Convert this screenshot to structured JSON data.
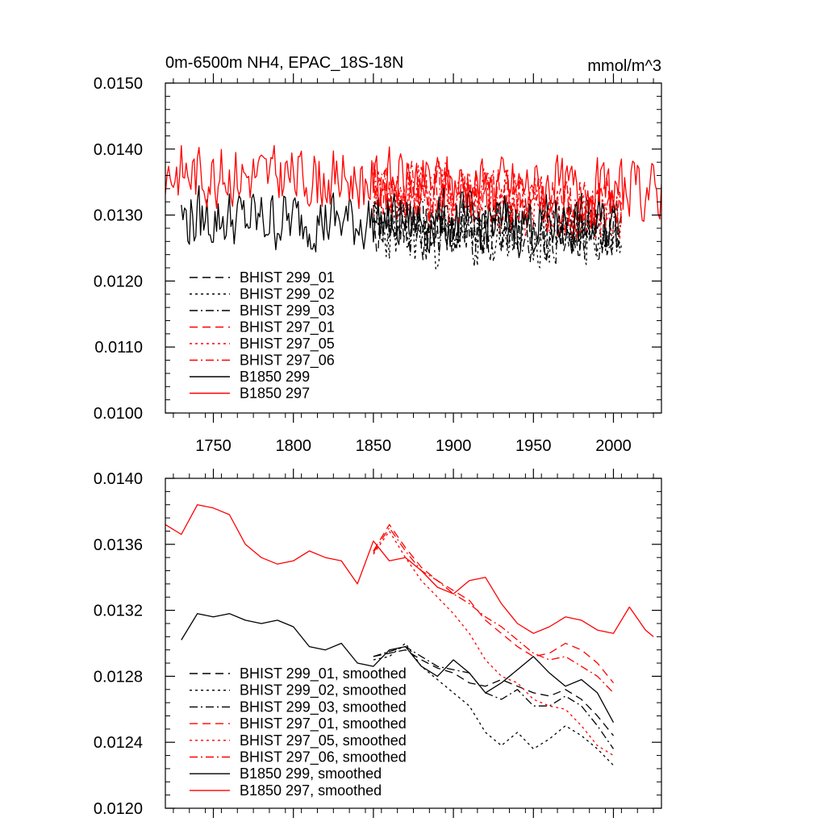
{
  "chart_data": [
    {
      "type": "line",
      "title": "0m-6500m NH4, EPAC_18S-18N",
      "units": "mmol/m^3",
      "xlabel": "",
      "ylabel": "",
      "xlim": [
        1720,
        2030
      ],
      "ylim": [
        0.01,
        0.015
      ],
      "xticks": [
        1750,
        1800,
        1850,
        1900,
        1950,
        2000
      ],
      "xtick_labels": [
        "1750",
        "1800",
        "1850",
        "1900",
        "1950",
        "2000"
      ],
      "yticks": [
        0.01,
        0.011,
        0.012,
        0.013,
        0.014,
        0.015
      ],
      "ytick_labels": [
        "0.0100",
        "0.0110",
        "0.0120",
        "0.0130",
        "0.0140",
        "0.0150"
      ],
      "legend_position": "lower-left",
      "series": [
        {
          "name": "BHIST 299_01",
          "color": "#000000",
          "dash": "long-dash",
          "x_start": 1850,
          "x_end": 2005,
          "mean": 0.0128,
          "amplitude": 0.00055,
          "trend": -4e-05,
          "seed": 11
        },
        {
          "name": "BHIST 299_02",
          "color": "#000000",
          "dash": "dot",
          "x_start": 1850,
          "x_end": 2005,
          "mean": 0.0127,
          "amplitude": 0.0006,
          "trend": -6e-05,
          "seed": 23
        },
        {
          "name": "BHIST 299_03",
          "color": "#000000",
          "dash": "dash-dot",
          "x_start": 1850,
          "x_end": 2005,
          "mean": 0.01275,
          "amplitude": 0.00055,
          "trend": -4e-05,
          "seed": 37
        },
        {
          "name": "BHIST 297_01",
          "color": "#ff0000",
          "dash": "long-dash",
          "x_start": 1850,
          "x_end": 2005,
          "mean": 0.01325,
          "amplitude": 0.00055,
          "trend": -0.0003,
          "seed": 41
        },
        {
          "name": "BHIST 297_05",
          "color": "#ff0000",
          "dash": "dot",
          "x_start": 1850,
          "x_end": 2005,
          "mean": 0.0132,
          "amplitude": 0.00055,
          "trend": -0.0004,
          "seed": 53
        },
        {
          "name": "BHIST 297_06",
          "color": "#ff0000",
          "dash": "dash-dot",
          "x_start": 1850,
          "x_end": 2005,
          "mean": 0.01325,
          "amplitude": 0.00055,
          "trend": -0.00035,
          "seed": 67
        },
        {
          "name": "B1850 299",
          "color": "#000000",
          "dash": "solid",
          "x_start": 1730,
          "x_end": 2004,
          "mean": 0.0129,
          "amplitude": 0.00055,
          "trend": -0.0001,
          "seed": 79
        },
        {
          "name": "B1850 297",
          "color": "#ff0000",
          "dash": "solid",
          "x_start": 1720,
          "x_end": 2030,
          "mean": 0.0135,
          "amplitude": 0.00055,
          "trend": -0.0003,
          "seed": 83
        }
      ]
    },
    {
      "type": "line",
      "title": "",
      "xlim": [
        1720,
        2030
      ],
      "ylim": [
        0.012,
        0.014
      ],
      "yticks": [
        0.012,
        0.0124,
        0.0128,
        0.0132,
        0.0136,
        0.014
      ],
      "ytick_labels": [
        "0.0120",
        "0.0124",
        "0.0128",
        "0.0132",
        "0.0136",
        "0.0140"
      ],
      "xticks": [
        1750,
        1800,
        1850,
        1900,
        1950,
        2000
      ],
      "legend_position": "lower-left",
      "series": [
        {
          "name": "BHIST 299_01, smoothed",
          "color": "#000000",
          "dash": "long-dash",
          "x": [
            1850,
            1860,
            1870,
            1880,
            1890,
            1900,
            1910,
            1920,
            1930,
            1940,
            1950,
            1960,
            1970,
            1980,
            1990,
            2000
          ],
          "y": [
            0.01292,
            0.01294,
            0.01296,
            0.0129,
            0.01285,
            0.01282,
            0.01276,
            0.01274,
            0.01278,
            0.01274,
            0.0127,
            0.01268,
            0.01272,
            0.01266,
            0.01256,
            0.01244
          ]
        },
        {
          "name": "BHIST 299_02, smoothed",
          "color": "#000000",
          "dash": "dot",
          "x": [
            1850,
            1860,
            1870,
            1880,
            1890,
            1900,
            1910,
            1920,
            1930,
            1940,
            1950,
            1960,
            1970,
            1980,
            1990,
            2000
          ],
          "y": [
            0.0129,
            0.01292,
            0.013,
            0.01286,
            0.01278,
            0.0127,
            0.01262,
            0.01246,
            0.01238,
            0.01246,
            0.01236,
            0.01242,
            0.0125,
            0.01244,
            0.01236,
            0.01226
          ]
        },
        {
          "name": "BHIST 299_03, smoothed",
          "color": "#000000",
          "dash": "dash-dot",
          "x": [
            1850,
            1860,
            1870,
            1880,
            1890,
            1900,
            1910,
            1920,
            1930,
            1940,
            1950,
            1960,
            1970,
            1980,
            1990,
            2000
          ],
          "y": [
            0.01292,
            0.01295,
            0.01298,
            0.01292,
            0.01286,
            0.01284,
            0.01282,
            0.0127,
            0.01266,
            0.01272,
            0.01262,
            0.01262,
            0.01268,
            0.01262,
            0.0125,
            0.01236
          ]
        },
        {
          "name": "BHIST 297_01, smoothed",
          "color": "#ff0000",
          "dash": "long-dash",
          "x": [
            1850,
            1860,
            1870,
            1880,
            1890,
            1900,
            1910,
            1920,
            1930,
            1940,
            1950,
            1960,
            1970,
            1980,
            1990,
            2000
          ],
          "y": [
            0.01356,
            0.01372,
            0.01358,
            0.01346,
            0.01338,
            0.01332,
            0.01326,
            0.01314,
            0.01306,
            0.01298,
            0.01292,
            0.01294,
            0.013,
            0.01296,
            0.01288,
            0.01276
          ]
        },
        {
          "name": "BHIST 297_05, smoothed",
          "color": "#ff0000",
          "dash": "dot",
          "x": [
            1850,
            1860,
            1870,
            1880,
            1890,
            1900,
            1910,
            1920,
            1930,
            1940,
            1950,
            1960,
            1970,
            1980,
            1990,
            2000
          ],
          "y": [
            0.01354,
            0.01368,
            0.01352,
            0.01338,
            0.01328,
            0.01318,
            0.01306,
            0.0129,
            0.0128,
            0.01276,
            0.01266,
            0.01262,
            0.0126,
            0.0125,
            0.01238,
            0.01232
          ]
        },
        {
          "name": "BHIST 297_06, smoothed",
          "color": "#ff0000",
          "dash": "dash-dot",
          "x": [
            1850,
            1860,
            1870,
            1880,
            1890,
            1900,
            1910,
            1920,
            1930,
            1940,
            1950,
            1960,
            1970,
            1980,
            1990,
            2000
          ],
          "y": [
            0.01355,
            0.0137,
            0.01356,
            0.01344,
            0.01338,
            0.0133,
            0.01324,
            0.01316,
            0.0131,
            0.01302,
            0.01294,
            0.0129,
            0.01292,
            0.01286,
            0.0128,
            0.0127
          ]
        },
        {
          "name": "B1850 299, smoothed",
          "color": "#000000",
          "dash": "solid",
          "x": [
            1730,
            1740,
            1750,
            1760,
            1770,
            1780,
            1790,
            1800,
            1810,
            1820,
            1830,
            1840,
            1850,
            1860,
            1870,
            1880,
            1890,
            1900,
            1910,
            1920,
            1930,
            1940,
            1950,
            1960,
            1970,
            1980,
            1990,
            2000
          ],
          "y": [
            0.01302,
            0.01318,
            0.01316,
            0.01318,
            0.01314,
            0.01312,
            0.01314,
            0.0131,
            0.01298,
            0.01296,
            0.013,
            0.01288,
            0.01286,
            0.01296,
            0.01298,
            0.01286,
            0.0128,
            0.0129,
            0.01282,
            0.0127,
            0.01276,
            0.01284,
            0.01292,
            0.01282,
            0.01274,
            0.01278,
            0.0127,
            0.01252
          ]
        },
        {
          "name": "B1850 297, smoothed",
          "color": "#ff0000",
          "dash": "solid",
          "x": [
            1720,
            1730,
            1740,
            1750,
            1760,
            1770,
            1780,
            1790,
            1800,
            1810,
            1820,
            1830,
            1840,
            1850,
            1860,
            1870,
            1880,
            1890,
            1900,
            1910,
            1920,
            1930,
            1940,
            1950,
            1960,
            1970,
            1980,
            1990,
            2000,
            2010,
            2020,
            2025
          ],
          "y": [
            0.01372,
            0.01366,
            0.01384,
            0.01382,
            0.01378,
            0.0136,
            0.01352,
            0.01348,
            0.0135,
            0.01356,
            0.01352,
            0.0135,
            0.01336,
            0.01362,
            0.0135,
            0.01352,
            0.01344,
            0.01334,
            0.0133,
            0.01338,
            0.0134,
            0.01324,
            0.01312,
            0.01306,
            0.0131,
            0.01316,
            0.01314,
            0.01308,
            0.01306,
            0.01322,
            0.01308,
            0.01304
          ]
        }
      ]
    }
  ]
}
